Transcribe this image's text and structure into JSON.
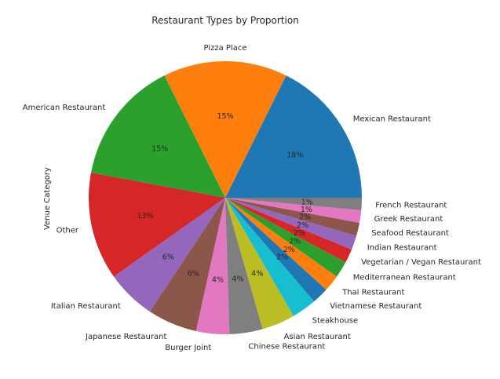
{
  "chart_data": {
    "type": "pie",
    "title": "Restaurant Types by Proportion",
    "ylabel": "Venue Category",
    "slices": [
      {
        "label": "Mexican Restaurant",
        "value": 18,
        "pct_label": "18%",
        "color": "#1f77b4"
      },
      {
        "label": "Pizza Place",
        "value": 15,
        "pct_label": "15%",
        "color": "#ff7f0e"
      },
      {
        "label": "American Restaurant",
        "value": 15,
        "pct_label": "15%",
        "color": "#2ca02c"
      },
      {
        "label": "Other",
        "value": 13,
        "pct_label": "13%",
        "color": "#d62728"
      },
      {
        "label": "Italian Restaurant",
        "value": 6,
        "pct_label": "6%",
        "color": "#9467bd"
      },
      {
        "label": "Japanese Restaurant",
        "value": 6,
        "pct_label": "6%",
        "color": "#8c564b"
      },
      {
        "label": "Burger Joint",
        "value": 4,
        "pct_label": "4%",
        "color": "#e377c2"
      },
      {
        "label": "Chinese Restaurant",
        "value": 4,
        "pct_label": "4%",
        "color": "#7f7f7f"
      },
      {
        "label": "Asian Restaurant",
        "value": 4,
        "pct_label": "4%",
        "color": "#bcbd22"
      },
      {
        "label": "Steakhouse",
        "value": 3,
        "pct_label": "",
        "color": "#17becf"
      },
      {
        "label": "Vietnamese Restaurant",
        "value": 2,
        "pct_label": "2%",
        "color": "#1f77b4"
      },
      {
        "label": "Thai Restaurant",
        "value": 2,
        "pct_label": "2%",
        "color": "#ff7f0e"
      },
      {
        "label": "Mediterranean Restaurant",
        "value": 2,
        "pct_label": "2%",
        "color": "#2ca02c"
      },
      {
        "label": "Vegetarian / Vegan Restaurant",
        "value": 1.7,
        "pct_label": "2%",
        "color": "#d62728"
      },
      {
        "label": "Indian Restaurant",
        "value": 1.7,
        "pct_label": "2%",
        "color": "#9467bd"
      },
      {
        "label": "Seafood Restaurant",
        "value": 1.6,
        "pct_label": "2%",
        "color": "#8c564b"
      },
      {
        "label": "Greek Restaurant",
        "value": 1.5,
        "pct_label": "1%",
        "color": "#e377c2"
      },
      {
        "label": "French Restaurant",
        "value": 1.5,
        "pct_label": "1%",
        "color": "#7f7f7f"
      }
    ]
  }
}
